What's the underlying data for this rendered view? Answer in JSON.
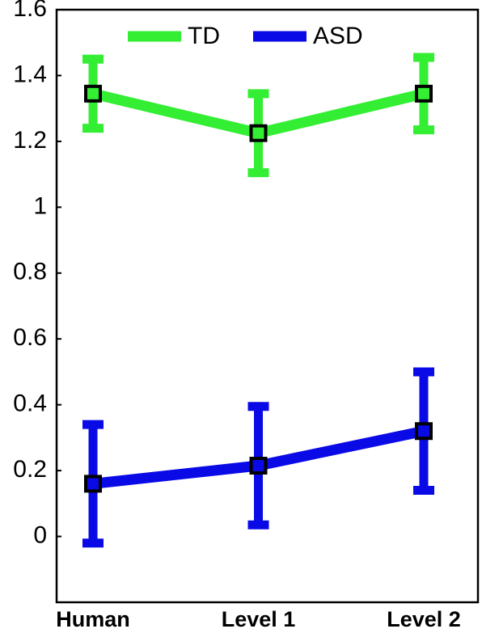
{
  "chart_data": {
    "type": "line_errorbar",
    "categories": [
      "Human",
      "Level 1",
      "Level 2"
    ],
    "series": [
      {
        "name": "TD",
        "color": "#33ee33",
        "values": [
          1.345,
          1.225,
          1.345
        ],
        "errors": [
          0.105,
          0.12,
          0.11
        ]
      },
      {
        "name": "ASD",
        "color": "#0a0ae6",
        "values": [
          0.16,
          0.215,
          0.32
        ],
        "errors": [
          0.18,
          0.18,
          0.18
        ]
      }
    ],
    "ylim": [
      -0.2,
      1.6
    ],
    "yticks": [
      0,
      0.2,
      0.4,
      0.6,
      0.8,
      1,
      1.2,
      1.4,
      1.6
    ],
    "grid": false,
    "legend": "upper center"
  }
}
